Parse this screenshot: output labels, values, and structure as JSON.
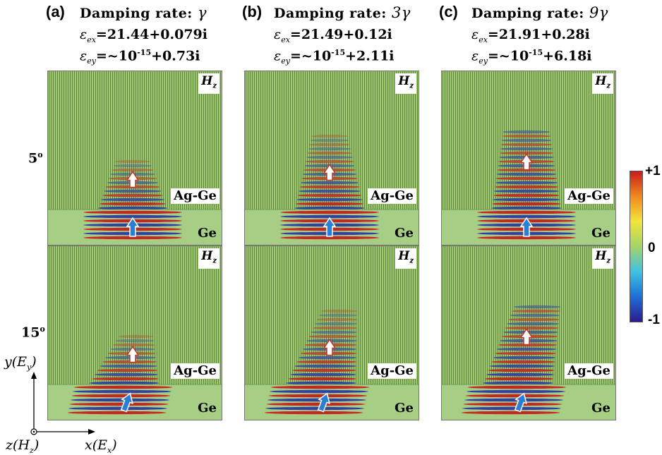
{
  "columns": [
    {
      "letter": "(a)",
      "title": "Damping rate:",
      "rate": "γ",
      "eps_x": "=21.44+0.079i",
      "eps_y_prefix": "=~10",
      "eps_y_exp": "-15",
      "eps_y_suffix": "+0.73i"
    },
    {
      "letter": "(b)",
      "title": "Damping rate:",
      "rate": "3γ",
      "eps_x": "=21.49+0.12i",
      "eps_y_prefix": "=~10",
      "eps_y_exp": "-15",
      "eps_y_suffix": "+2.11i"
    },
    {
      "letter": "(c)",
      "title": "Damping rate:",
      "rate": "9γ",
      "eps_x": "=21.91+0.28i",
      "eps_y_prefix": "=~10",
      "eps_y_exp": "-15",
      "eps_y_suffix": "+6.18i"
    }
  ],
  "eps_symbol": "ε",
  "eps_x_sub": "ex",
  "eps_y_sub": "ey",
  "rows": [
    {
      "angle": "5",
      "degree": "o"
    },
    {
      "angle": "15",
      "degree": "o"
    }
  ],
  "panel_labels": {
    "field": "H",
    "field_sub": "z",
    "upper_medium": "Ag-Ge",
    "lower_medium": "Ge"
  },
  "colorbar": {
    "max": "+1",
    "mid": "0",
    "min": "-1",
    "colors": [
      "#2c1a8c",
      "#1e6fd6",
      "#40c2e0",
      "#a3d36a",
      "#f2e53a",
      "#f08a1e",
      "#c81c1c"
    ]
  },
  "axes": {
    "y_label": "y",
    "y_paren": "E",
    "y_sub": "y",
    "x_label": "x",
    "x_paren": "E",
    "x_sub": "x",
    "z_label": "z",
    "z_paren": "H",
    "z_sub": "z"
  },
  "colors": {
    "green_bg": "#9dc870",
    "stripe": "#4a6e30",
    "arrow_out": "#c0392b",
    "arrow_in": "#2a7fd4"
  }
}
